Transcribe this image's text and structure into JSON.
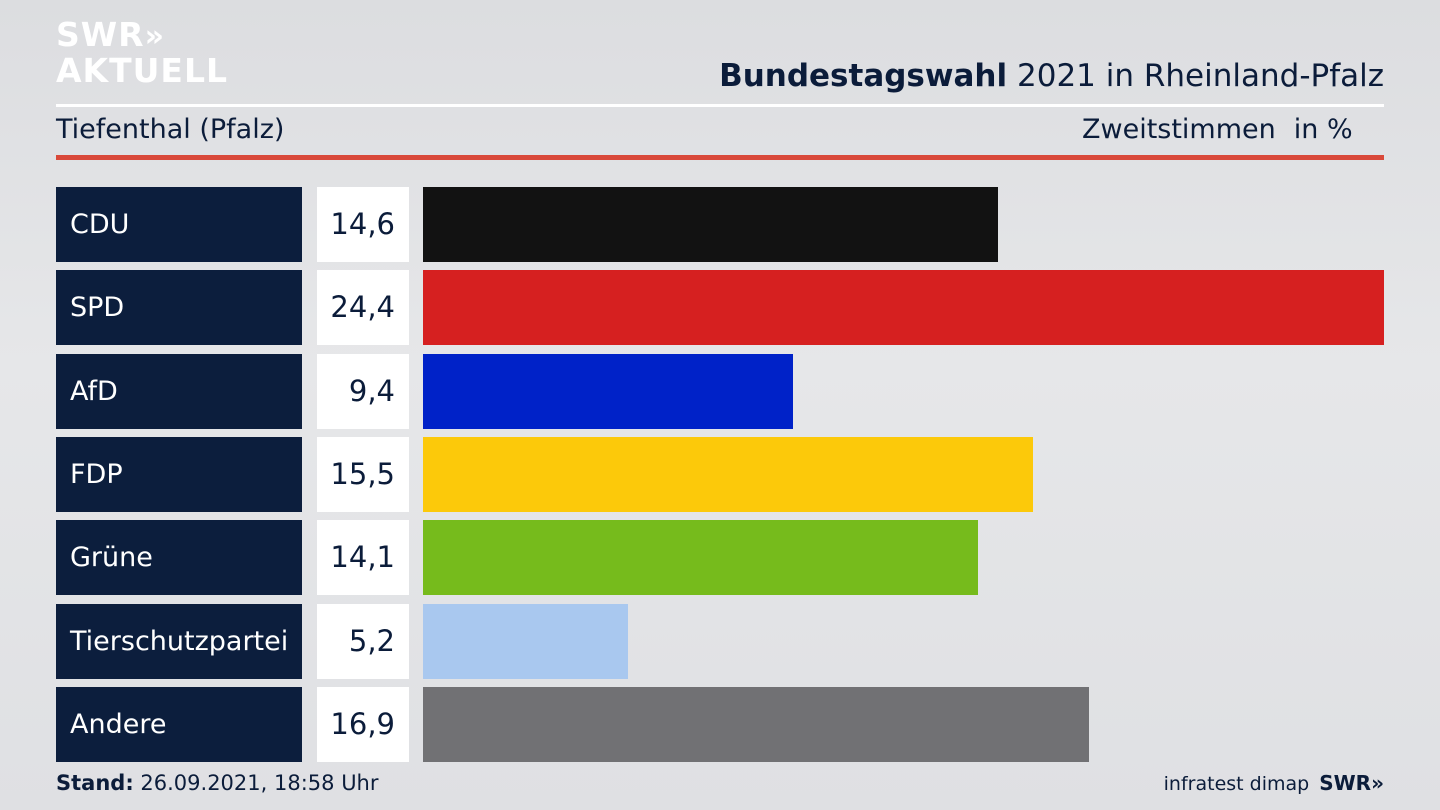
{
  "brand": {
    "logo_line1": "SWR",
    "logo_chevrons": "»",
    "logo_line2": "AKTUELL"
  },
  "header": {
    "title_bold": "Bundestagswahl",
    "title_rest": "2021 in Rheinland-Pfalz",
    "location": "Tiefenthal (Pfalz)",
    "metric": "Zweitstimmen",
    "unit": "in %"
  },
  "chart_data": {
    "type": "bar",
    "orientation": "horizontal",
    "categories": [
      "CDU",
      "SPD",
      "AfD",
      "FDP",
      "Grüne",
      "Tierschutzpartei",
      "Andere"
    ],
    "values": [
      14.6,
      24.4,
      9.4,
      15.5,
      14.1,
      5.2,
      16.9
    ],
    "value_labels": [
      "14,6",
      "24,4",
      "9,4",
      "15,5",
      "14,1",
      "5,2",
      "16,9"
    ],
    "colors": [
      "#121212",
      "#d62020",
      "#0022c8",
      "#fcc90a",
      "#76bb1c",
      "#a9c8ef",
      "#717174"
    ],
    "title": "Bundestagswahl 2021 in Rheinland-Pfalz",
    "subtitle": "Tiefenthal (Pfalz)",
    "ylabel": "Zweitstimmen in %",
    "xlim": [
      0,
      24.4
    ],
    "grid": false,
    "legend": "none"
  },
  "footer": {
    "stand_label": "Stand:",
    "stand_value": "26.09.2021, 18:58 Uhr",
    "source": "infratest dimap",
    "source_logo": "SWR»"
  }
}
